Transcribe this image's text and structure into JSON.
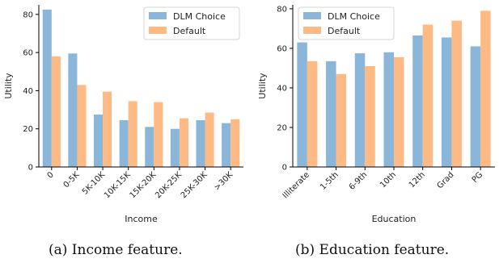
{
  "captions": {
    "income": "(a) Income feature.",
    "education": "(b) Education feature."
  },
  "colors": {
    "dlm_choice": "#8ab6d9",
    "default": "#fdba85"
  },
  "chart_data": [
    {
      "type": "bar",
      "xlabel": "Income",
      "ylabel": "Utility",
      "ylim": [
        0,
        85
      ],
      "yticks": [
        0,
        20,
        40,
        60,
        80
      ],
      "legend_position": "top-right",
      "categories": [
        "0",
        "0-5K",
        "5K-10K",
        "10K-15K",
        "15K-20K",
        "20K-25K",
        "25K-30K",
        ">30K"
      ],
      "series": [
        {
          "name": "DLM Choice",
          "values": [
            82.5,
            59.5,
            27.5,
            24.5,
            21,
            20,
            24.5,
            23
          ]
        },
        {
          "name": "Default",
          "values": [
            58,
            43,
            39.5,
            34.5,
            34,
            25.5,
            28.5,
            25
          ]
        }
      ]
    },
    {
      "type": "bar",
      "xlabel": "Education",
      "ylabel": "Utility",
      "ylim": [
        0,
        82
      ],
      "yticks": [
        0,
        20,
        40,
        60,
        80
      ],
      "legend_position": "top-left",
      "categories": [
        "Illiterate",
        "1-5th",
        "6-9th",
        "10th",
        "12th",
        "Grad",
        "PG"
      ],
      "series": [
        {
          "name": "DLM Choice",
          "values": [
            63,
            53.5,
            57.5,
            58,
            66.5,
            65.5,
            61
          ]
        },
        {
          "name": "Default",
          "values": [
            53.5,
            47,
            51,
            55.5,
            72,
            74,
            79
          ]
        }
      ]
    }
  ]
}
